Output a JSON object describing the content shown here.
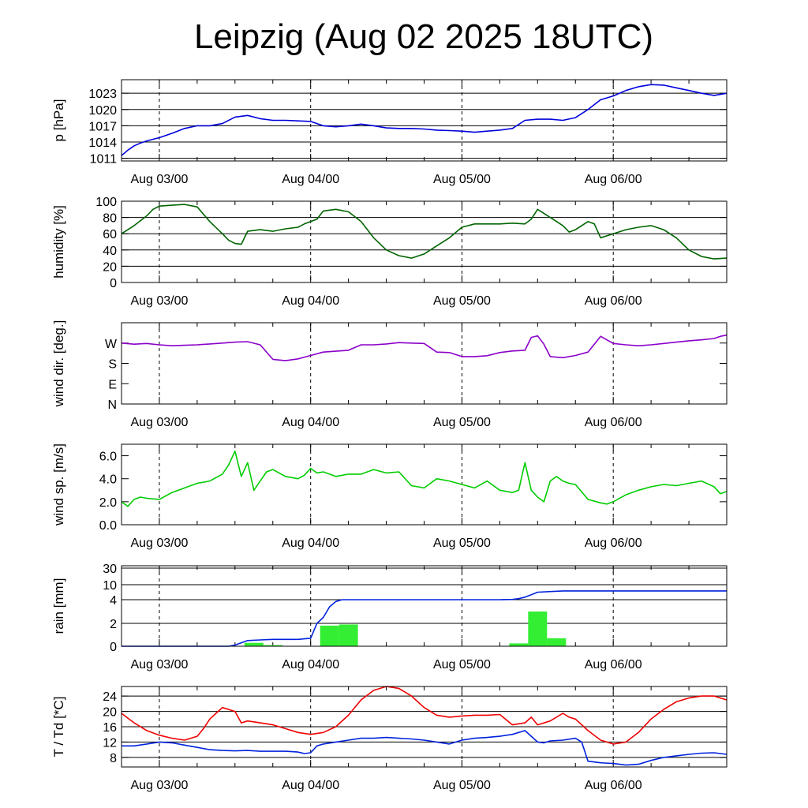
{
  "title": "Leipzig (Aug 02 2025 18UTC)",
  "time_axis": {
    "start": "2025-08-02 18:00",
    "end": "2025-08-06 18:00",
    "tick_labels": [
      "Aug 03/00",
      "Aug 04/00",
      "Aug 05/00",
      "Aug 06/00"
    ],
    "tick_hours": [
      6,
      30,
      54,
      78
    ],
    "dashed_day_lines": true
  },
  "chart_data": [
    {
      "type": "line",
      "ylabel": "p [hPa]",
      "yticks": [
        1011,
        1014,
        1017,
        1020,
        1023
      ],
      "ylim": [
        1010.5,
        1025.5
      ],
      "grid": true,
      "color": "#0000dd",
      "series": [
        {
          "hours": [
            0,
            1,
            2,
            3,
            4,
            5,
            6,
            8,
            10,
            12,
            14,
            16,
            18,
            20,
            22,
            24,
            26,
            28,
            30,
            32,
            34,
            36,
            38,
            40,
            42,
            44,
            46,
            48,
            50,
            52,
            54,
            56,
            58,
            60,
            62,
            64,
            66,
            68,
            70,
            72,
            74,
            76,
            78,
            80,
            82,
            84,
            86,
            88,
            90,
            92,
            94,
            96
          ],
          "values": [
            1011.5,
            1012.5,
            1013.3,
            1013.8,
            1014.2,
            1014.5,
            1014.8,
            1015.6,
            1016.5,
            1017.0,
            1017.0,
            1017.4,
            1018.6,
            1018.9,
            1018.3,
            1018.0,
            1018.0,
            1017.9,
            1017.8,
            1017.0,
            1016.8,
            1017.0,
            1017.3,
            1017.0,
            1016.6,
            1016.5,
            1016.5,
            1016.4,
            1016.2,
            1016.1,
            1016.0,
            1015.8,
            1016.0,
            1016.2,
            1016.5,
            1018.0,
            1018.2,
            1018.2,
            1018.0,
            1018.5,
            1020.0,
            1021.8,
            1022.5,
            1023.5,
            1024.2,
            1024.6,
            1024.5,
            1024.0,
            1023.5,
            1023.0,
            1022.6,
            1023.0
          ]
        }
      ]
    },
    {
      "type": "line",
      "ylabel": "humidity [%]",
      "yticks": [
        0,
        20,
        40,
        60,
        80,
        100
      ],
      "ylim": [
        0,
        100
      ],
      "grid": true,
      "color": "#006400",
      "series": [
        {
          "hours": [
            0,
            2,
            4,
            5,
            6,
            8,
            10,
            12,
            14,
            16,
            17,
            18,
            19,
            20,
            22,
            24,
            26,
            28,
            29,
            30,
            31,
            32,
            34,
            36,
            38,
            40,
            42,
            44,
            46,
            48,
            50,
            52,
            54,
            56,
            58,
            60,
            62,
            64,
            65,
            66,
            68,
            70,
            71,
            72,
            74,
            75,
            76,
            78,
            80,
            82,
            84,
            86,
            88,
            90,
            92,
            94,
            96
          ],
          "values": [
            60,
            70,
            82,
            90,
            94,
            95,
            96,
            93,
            75,
            60,
            52,
            48,
            47,
            63,
            65,
            63,
            66,
            68,
            72,
            75,
            78,
            88,
            90,
            87,
            75,
            55,
            40,
            33,
            30,
            35,
            45,
            55,
            68,
            72,
            72,
            72,
            73,
            72,
            78,
            90,
            80,
            70,
            62,
            65,
            75,
            72,
            55,
            60,
            65,
            68,
            70,
            65,
            55,
            40,
            32,
            29,
            30
          ]
        }
      ]
    },
    {
      "type": "line",
      "ylabel": "wind dir. [deg.]",
      "yticks": [
        "N",
        "E",
        "S",
        "W"
      ],
      "ytick_degrees": [
        0,
        90,
        180,
        270
      ],
      "ylim": [
        0,
        360
      ],
      "grid": false,
      "color": "#8b00c9",
      "series": [
        {
          "hours": [
            0,
            2,
            4,
            6,
            8,
            10,
            12,
            14,
            16,
            18,
            20,
            22,
            24,
            26,
            28,
            30,
            32,
            34,
            36,
            38,
            40,
            42,
            44,
            46,
            48,
            50,
            52,
            54,
            56,
            58,
            60,
            62,
            64,
            65,
            66,
            67,
            68,
            70,
            72,
            74,
            76,
            78,
            80,
            82,
            84,
            86,
            88,
            90,
            92,
            94,
            95,
            96
          ],
          "values": [
            270,
            265,
            268,
            262,
            258,
            260,
            262,
            266,
            270,
            274,
            276,
            262,
            198,
            192,
            200,
            215,
            230,
            234,
            238,
            262,
            262,
            266,
            272,
            270,
            268,
            230,
            228,
            210,
            210,
            214,
            228,
            235,
            238,
            295,
            302,
            265,
            210,
            205,
            215,
            230,
            300,
            268,
            262,
            258,
            262,
            268,
            274,
            280,
            284,
            290,
            300,
            305
          ]
        }
      ]
    },
    {
      "type": "line",
      "ylabel": "wind sp. [m/s]",
      "yticks": [
        "0.0",
        "2.0",
        "4.0",
        "6.0"
      ],
      "ylim": [
        0,
        7
      ],
      "grid": false,
      "color": "#00cc00",
      "series": [
        {
          "hours": [
            0,
            1,
            2,
            3,
            4,
            6,
            8,
            10,
            12,
            14,
            16,
            17,
            18,
            19,
            20,
            21,
            22,
            23,
            24,
            26,
            28,
            29,
            30,
            31,
            32,
            34,
            36,
            38,
            40,
            42,
            44,
            46,
            48,
            50,
            52,
            54,
            56,
            58,
            60,
            62,
            63,
            64,
            65,
            66,
            67,
            68,
            69,
            70,
            71,
            72,
            74,
            76,
            77,
            78,
            80,
            82,
            84,
            86,
            88,
            90,
            92,
            94,
            95,
            96
          ],
          "values": [
            2.0,
            1.6,
            2.2,
            2.4,
            2.3,
            2.2,
            2.8,
            3.2,
            3.6,
            3.8,
            4.4,
            5.2,
            6.4,
            4.2,
            5.4,
            3.0,
            3.8,
            4.6,
            4.8,
            4.2,
            4.0,
            4.3,
            4.9,
            4.5,
            4.6,
            4.2,
            4.4,
            4.4,
            4.8,
            4.5,
            4.6,
            3.4,
            3.2,
            4.0,
            3.8,
            3.5,
            3.2,
            3.8,
            3.0,
            2.8,
            3.0,
            5.4,
            3.0,
            2.4,
            2.0,
            3.8,
            4.2,
            3.8,
            3.6,
            3.5,
            2.2,
            1.9,
            1.8,
            2.0,
            2.6,
            3.0,
            3.3,
            3.5,
            3.4,
            3.6,
            3.8,
            3.3,
            2.7,
            2.9
          ]
        }
      ]
    },
    {
      "type": "bar",
      "ylabel": "rain [mm]",
      "yticks": [
        "0",
        "2",
        "4",
        "10",
        "30"
      ],
      "grid": true,
      "bar_color": "#33ee33",
      "bars": [
        {
          "start_hour": 19.5,
          "end_hour": 22.5,
          "value": 0.3
        },
        {
          "start_hour": 22.5,
          "end_hour": 25.5,
          "value": 0.1
        },
        {
          "start_hour": 31.5,
          "end_hour": 34.5,
          "value": 1.8
        },
        {
          "start_hour": 34.5,
          "end_hour": 37.5,
          "value": 1.9
        },
        {
          "start_hour": 61.5,
          "end_hour": 64.5,
          "value": 0.25
        },
        {
          "start_hour": 64.5,
          "end_hour": 67.5,
          "value": 3.0
        },
        {
          "start_hour": 67.5,
          "end_hour": 70.5,
          "value": 0.7
        }
      ],
      "series": [
        {
          "type": "line",
          "color": "#0022dd",
          "hours": [
            0,
            17,
            18,
            19,
            20,
            22,
            24,
            26,
            28,
            29,
            30,
            31,
            32,
            33,
            34,
            35,
            40,
            50,
            60,
            62,
            63,
            64,
            65,
            66,
            70,
            80,
            96
          ],
          "values": [
            0,
            0,
            0.1,
            0.3,
            0.5,
            0.55,
            0.6,
            0.6,
            0.6,
            0.65,
            0.7,
            2.0,
            2.5,
            3.4,
            3.85,
            4.0,
            4.0,
            4.0,
            4.0,
            4.1,
            4.4,
            5.0,
            6.0,
            7.0,
            7.5,
            7.5,
            7.5
          ]
        }
      ]
    },
    {
      "type": "line",
      "ylabel": "T / Td [*C]",
      "yticks": [
        8,
        12,
        16,
        20,
        24
      ],
      "ylim": [
        5.5,
        26.5
      ],
      "grid": true,
      "series": [
        {
          "color": "#ee0000",
          "hours": [
            0,
            2,
            4,
            6,
            8,
            10,
            12,
            13,
            14,
            15,
            16,
            17,
            18,
            19,
            20,
            22,
            24,
            26,
            28,
            30,
            32,
            34,
            36,
            38,
            40,
            42,
            44,
            46,
            48,
            50,
            52,
            54,
            56,
            58,
            60,
            62,
            64,
            65,
            66,
            68,
            70,
            71,
            72,
            74,
            76,
            78,
            80,
            82,
            84,
            86,
            88,
            90,
            92,
            94,
            95,
            96
          ],
          "values": [
            19.5,
            17.0,
            15.0,
            13.8,
            13.0,
            12.5,
            13.5,
            15.5,
            18.0,
            19.5,
            21.0,
            20.5,
            20.0,
            17.0,
            17.5,
            17.0,
            16.5,
            15.5,
            14.5,
            14.0,
            14.5,
            16.0,
            19.0,
            23.0,
            25.5,
            26.5,
            26.0,
            24.0,
            21.0,
            19.0,
            18.5,
            18.8,
            19.0,
            19.0,
            19.2,
            16.5,
            17.0,
            18.5,
            16.5,
            17.5,
            19.5,
            18.5,
            18.0,
            15.0,
            12.5,
            11.5,
            12.0,
            14.5,
            18.0,
            20.5,
            22.5,
            23.5,
            24.0,
            24.0,
            23.5,
            23.0
          ]
        },
        {
          "color": "#0022dd",
          "hours": [
            0,
            2,
            4,
            6,
            8,
            10,
            12,
            14,
            16,
            18,
            20,
            22,
            24,
            26,
            28,
            29,
            30,
            31,
            32,
            34,
            36,
            38,
            40,
            42,
            44,
            46,
            48,
            50,
            52,
            54,
            56,
            58,
            60,
            62,
            64,
            65,
            66,
            67,
            68,
            70,
            72,
            73,
            74,
            76,
            78,
            80,
            82,
            84,
            86,
            88,
            90,
            92,
            94,
            96
          ],
          "values": [
            11.0,
            11.0,
            11.5,
            12.0,
            11.8,
            11.2,
            10.6,
            10.0,
            9.8,
            9.7,
            9.8,
            9.6,
            9.6,
            9.6,
            9.4,
            9.0,
            9.2,
            11.0,
            11.5,
            12.0,
            12.5,
            13.0,
            13.0,
            13.2,
            13.0,
            12.8,
            12.5,
            12.0,
            11.5,
            12.5,
            13.0,
            13.2,
            13.5,
            14.0,
            15.0,
            13.5,
            12.0,
            11.8,
            12.3,
            12.5,
            13.0,
            12.0,
            7.0,
            6.6,
            6.4,
            6.0,
            6.2,
            7.2,
            8.0,
            8.4,
            8.8,
            9.1,
            9.2,
            8.8
          ]
        }
      ]
    }
  ]
}
